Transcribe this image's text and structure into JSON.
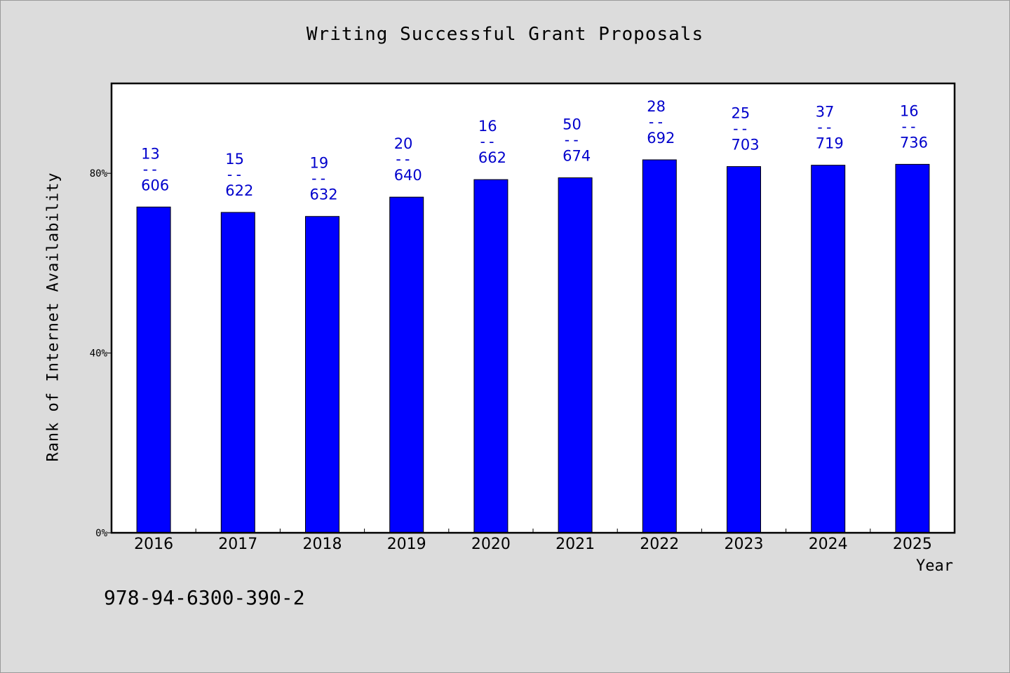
{
  "chart_data": {
    "type": "bar",
    "title": "Writing Successful Grant Proposals",
    "xlabel": "Year",
    "ylabel": "Rank of Internet Availability",
    "categories": [
      "2016",
      "2017",
      "2018",
      "2019",
      "2020",
      "2021",
      "2022",
      "2023",
      "2024",
      "2025"
    ],
    "values": [
      72.5,
      71.3,
      70.4,
      74.7,
      78.6,
      79.0,
      83.0,
      81.5,
      81.8,
      82.0
    ],
    "value_unit": "%",
    "data_labels": [
      {
        "top": "13",
        "sep": "--",
        "bottom": "606"
      },
      {
        "top": "15",
        "sep": "--",
        "bottom": "622"
      },
      {
        "top": "19",
        "sep": "--",
        "bottom": "632"
      },
      {
        "top": "20",
        "sep": "--",
        "bottom": "640"
      },
      {
        "top": "16",
        "sep": "--",
        "bottom": "662"
      },
      {
        "top": "50",
        "sep": "--",
        "bottom": "674"
      },
      {
        "top": "28",
        "sep": "--",
        "bottom": "692"
      },
      {
        "top": "25",
        "sep": "--",
        "bottom": "703"
      },
      {
        "top": "37",
        "sep": "--",
        "bottom": "719"
      },
      {
        "top": "16",
        "sep": "--",
        "bottom": "736"
      }
    ],
    "ylim": [
      0,
      100
    ],
    "yticks": [
      0,
      40,
      80
    ],
    "ytick_labels": [
      "0%",
      "40%",
      "80%"
    ],
    "grid": false,
    "colors": {
      "bar": "#0000ff",
      "bar_edge": "#000000",
      "label": "#0000cc",
      "plot_bg": "#ffffff",
      "page_bg": "#dcdcdc"
    }
  },
  "footer": {
    "isbn": "978-94-6300-390-2"
  }
}
